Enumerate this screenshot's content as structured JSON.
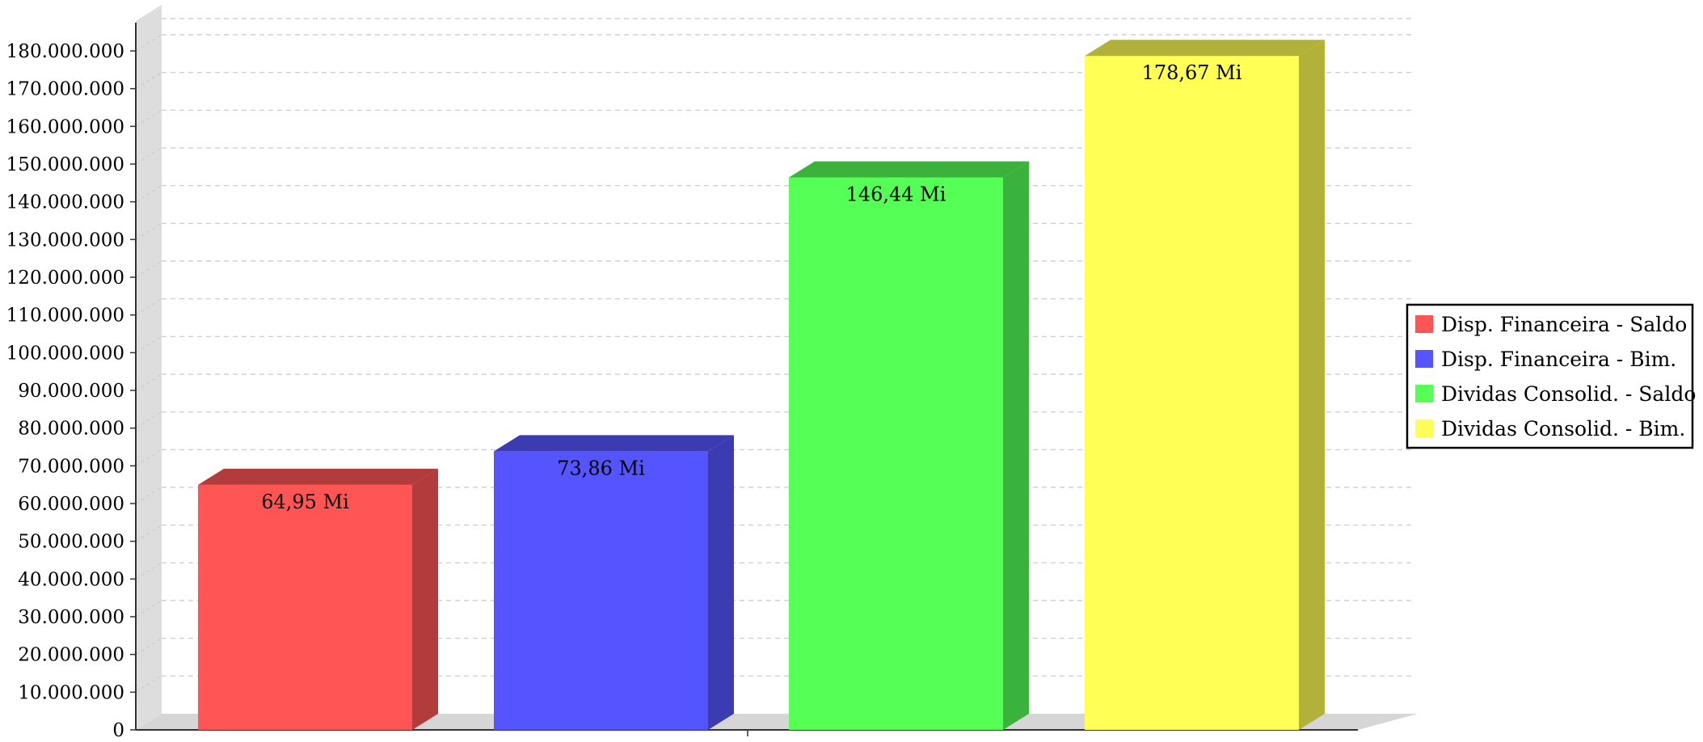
{
  "chart_data": {
    "type": "bar",
    "categories": [
      ""
    ],
    "series": [
      {
        "name": "Disp. Financeira - Saldo",
        "values": [
          64950000
        ],
        "label": "64,95 Mi",
        "color": "#FF5555",
        "side_color": "#B23B3B"
      },
      {
        "name": "Disp. Financeira - Bim.",
        "values": [
          73860000
        ],
        "label": "73,86 Mi",
        "color": "#5555FF",
        "side_color": "#3B3BB2"
      },
      {
        "name": "Dividas Consolid. - Saldo",
        "values": [
          146440000
        ],
        "label": "146,44 Mi",
        "color": "#55FF55",
        "side_color": "#3BB23B"
      },
      {
        "name": "Dividas Consolid. - Bim.",
        "values": [
          178670000
        ],
        "label": "178,67 Mi",
        "color": "#FFFF55",
        "side_color": "#B2B23B"
      }
    ],
    "title": "",
    "xlabel": "",
    "ylabel": "",
    "ylim": [
      0,
      180000000
    ],
    "yticks": [
      0,
      10000000,
      20000000,
      30000000,
      40000000,
      50000000,
      60000000,
      70000000,
      80000000,
      90000000,
      100000000,
      110000000,
      120000000,
      130000000,
      140000000,
      150000000,
      160000000,
      170000000,
      180000000
    ],
    "ytick_labels": [
      "0",
      "10.000.000",
      "20.000.000",
      "30.000.000",
      "40.000.000",
      "50.000.000",
      "60.000.000",
      "70.000.000",
      "80.000.000",
      "90.000.000",
      "100.000.000",
      "110.000.000",
      "120.000.000",
      "130.000.000",
      "140.000.000",
      "150.000.000",
      "160.000.000",
      "170.000.000",
      "180.000.000"
    ],
    "grid": true,
    "three_d": true,
    "legend_position": "right",
    "colors": {
      "wall": "#DDDDDD",
      "floor": "#D6D6D6",
      "grid": "#C8C8C8",
      "axis": "#333333",
      "legend_border": "#000000"
    }
  }
}
